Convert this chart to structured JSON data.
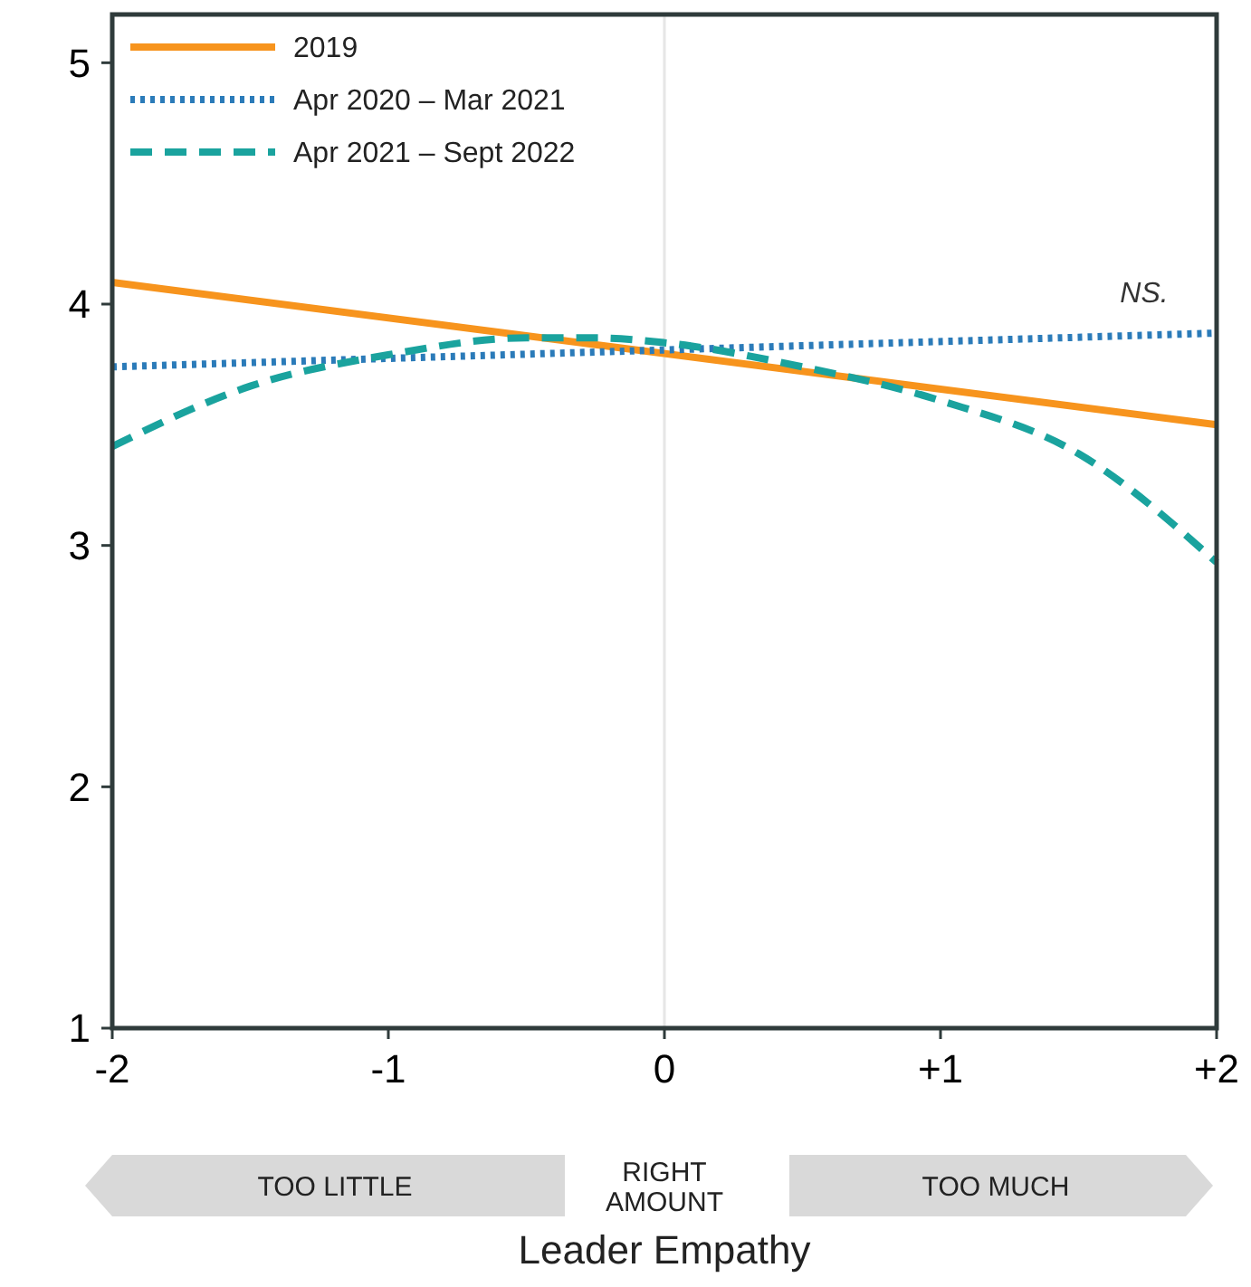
{
  "chart_data": {
    "type": "line",
    "xlabel": "Leader Empathy",
    "xlim": [
      -2,
      2
    ],
    "ylim": [
      1,
      5.2
    ],
    "xticks": [
      -2,
      -1,
      0,
      {
        "value": 1,
        "label": "+1"
      },
      {
        "value": 2,
        "label": "+2"
      }
    ],
    "yticks": [
      1,
      2,
      3,
      4,
      5
    ],
    "grid": false,
    "legend": "top left",
    "series": [
      {
        "name": "2019",
        "color": "#f7941d",
        "line_style": "solid",
        "x": [
          -2,
          2
        ],
        "values": [
          4.09,
          3.5
        ]
      },
      {
        "name": "Apr 2020 – Mar 2021",
        "color": "#2b7bb9",
        "line_style": "dotted",
        "x": [
          -2,
          2
        ],
        "values": [
          3.74,
          3.88
        ]
      },
      {
        "name": "Apr 2021 – Sept 2022",
        "color": "#1aa39e",
        "line_style": "dashed",
        "x": [
          -2,
          -1.5,
          -1,
          -0.5,
          -0.25,
          0,
          0.5,
          1,
          1.5,
          2
        ],
        "values": [
          3.41,
          3.66,
          3.79,
          3.86,
          3.86,
          3.84,
          3.74,
          3.6,
          3.38,
          2.93
        ]
      }
    ],
    "ref_lines": [
      {
        "axis": "x",
        "value": 0,
        "color": "#e6e6e6"
      }
    ],
    "annotations": [
      "NS.",
      "TOO LITTLE",
      "RIGHT AMOUNT",
      "TOO MUCH"
    ]
  }
}
